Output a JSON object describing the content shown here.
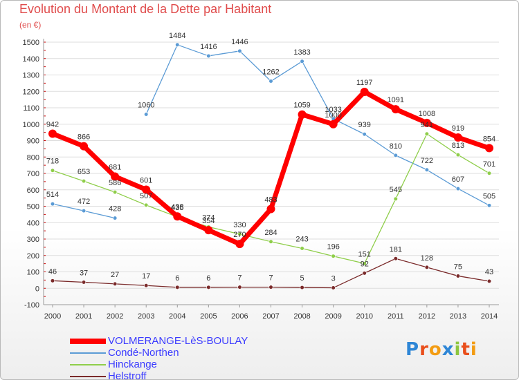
{
  "header": {
    "title": "Evolution du Montant de la Dette par Habitant",
    "subtitle": "(en €)"
  },
  "colors": {
    "title": "#e04c4c",
    "axis_text": "#333333",
    "grid": "#dddddd",
    "axis_tick": "#cc0000"
  },
  "chart_data": {
    "type": "line",
    "title": "Evolution du Montant de la Dette par Habitant",
    "subtitle": "(en €)",
    "xlabel": "",
    "ylabel": "",
    "x": [
      "2000",
      "2001",
      "2002",
      "2003",
      "2004",
      "2005",
      "2006",
      "2007",
      "2008",
      "2009",
      "2010",
      "2011",
      "2012",
      "2013",
      "2014"
    ],
    "ylim": [
      -100,
      1500
    ],
    "yticks": [
      -100,
      0,
      100,
      200,
      300,
      400,
      500,
      600,
      700,
      800,
      900,
      1000,
      1100,
      1200,
      1300,
      1400,
      1500
    ],
    "grid": "horizontal",
    "legend": "bottom-left",
    "series": [
      {
        "name": "Condé-Northen",
        "color": "#5b9bd5",
        "values": [
          514,
          472,
          428,
          1060,
          1484,
          1416,
          1446,
          1262,
          1383,
          1033,
          939,
          810,
          722,
          607,
          505
        ],
        "labels": [
          "514",
          "472",
          "428",
          "1060",
          "1484",
          "1416",
          "1446",
          "1262",
          "1383",
          "1033",
          "939",
          "810",
          "722",
          "607",
          "505"
        ],
        "breaks_after": [
          2
        ]
      },
      {
        "name": "Hinckange",
        "color": "#8fce4a",
        "values": [
          718,
          653,
          586,
          507,
          435,
          374,
          330,
          284,
          243,
          196,
          151,
          545,
          941,
          813,
          701
        ],
        "labels": [
          "718",
          "653",
          "586",
          "507",
          "435",
          "374",
          "330",
          "284",
          "243",
          "196",
          "151",
          "545",
          "941",
          "813",
          "701"
        ]
      },
      {
        "name": "Helstroff",
        "color": "#7a2a2a",
        "values": [
          46,
          37,
          27,
          17,
          6,
          6,
          7,
          7,
          5,
          3,
          92,
          181,
          128,
          75,
          43
        ],
        "labels": [
          "46",
          "37",
          "27",
          "17",
          "6",
          "6",
          "7",
          "7",
          "5",
          "3",
          "92",
          "181",
          "128",
          "75",
          "43"
        ]
      },
      {
        "name": "VOLMERANGE-LèS-BOULAY",
        "color": "#ff0000",
        "values": [
          942,
          866,
          681,
          601,
          438,
          354,
          270,
          483,
          1059,
          1000,
          1197,
          1091,
          1008,
          919,
          854
        ],
        "labels": [
          "942",
          "866",
          "681",
          "601",
          "438",
          "354",
          "270",
          "483",
          "1059",
          "1000",
          "1197",
          "1091",
          "1008",
          "919",
          "854"
        ]
      }
    ]
  },
  "legend": {
    "items": [
      {
        "label": "VOLMERANGE-LèS-BOULAY",
        "color": "#ff0000",
        "text_color": "#3a3aff",
        "thick": true
      },
      {
        "label": "Condé-Northen",
        "color": "#5b9bd5",
        "text_color": "#3a3aff",
        "thick": false
      },
      {
        "label": "Hinckange",
        "color": "#8fce4a",
        "text_color": "#3a3aff",
        "thick": false
      },
      {
        "label": "Helstroff",
        "color": "#7a2a2a",
        "text_color": "#3a3aff",
        "thick": false
      }
    ]
  },
  "logo": {
    "text": "Proxiti",
    "letter_colors": [
      "#2e86d6",
      "#e94e1b",
      "#f39c12",
      "#2e86d6",
      "#8dc63f",
      "#e94e1b",
      "#f39c12"
    ]
  }
}
